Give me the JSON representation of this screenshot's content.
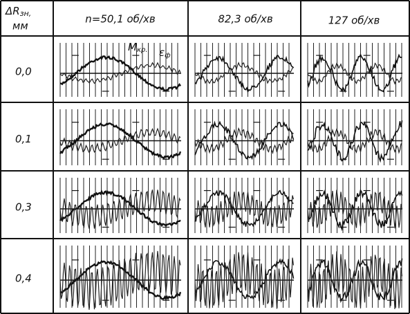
{
  "header": {
    "corner": {
      "symbol": "ΔR",
      "subscript": "зн,",
      "unit": "мм"
    },
    "columns": [
      "n=50,1 об/хв",
      "82,3 об/хв",
      "127 об/хв"
    ]
  },
  "rows": [
    {
      "label": "0,0"
    },
    {
      "label": "0,1"
    },
    {
      "label": "0,3"
    },
    {
      "label": "0,4"
    }
  ],
  "annotations": {
    "torque": {
      "symbol": "M",
      "subscript": "кр."
    },
    "strain": {
      "symbol": "ε",
      "subscript": "ф"
    }
  }
}
